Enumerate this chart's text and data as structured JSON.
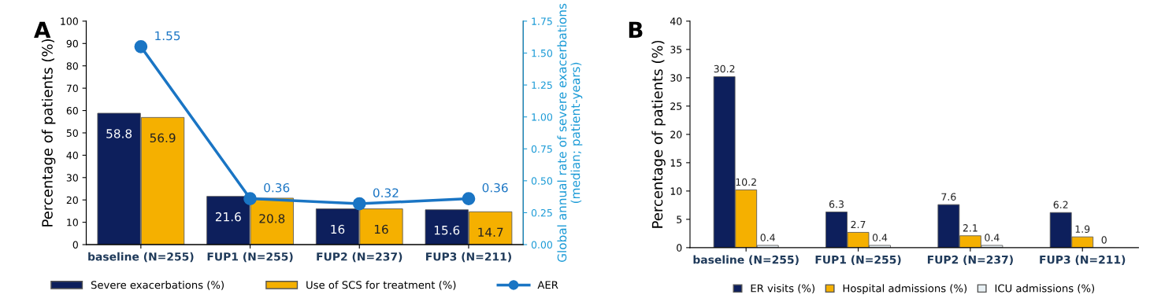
{
  "chart_data": [
    {
      "type": "bar",
      "title": "A",
      "categories": [
        "baseline (N=255)",
        "FUP1 (N=255)",
        "FUP2 (N=237)",
        "FUP3 (N=211)"
      ],
      "ylabel": "Percentage of patients (%)",
      "y2label": "Global annual rate of severe exacerbations\n(median; patient-years)",
      "ylim": [
        0,
        100
      ],
      "yticks": [
        0,
        10,
        20,
        30,
        40,
        50,
        60,
        70,
        80,
        90,
        100
      ],
      "y2lim": [
        0,
        1.75
      ],
      "y2ticks": [
        {
          "value": 0,
          "label": "0.00"
        },
        {
          "value": 0.25,
          "label": "0.25"
        },
        {
          "value": 0.5,
          "label": "0.50"
        },
        {
          "value": 0.75,
          "label": "0.75"
        },
        {
          "value": 1,
          "label": "1.00"
        },
        {
          "value": 1.25,
          "label": "1.25"
        },
        {
          "value": 1.5,
          "label": "1.50"
        },
        {
          "value": 1.75,
          "label": "1.75"
        }
      ],
      "series": [
        {
          "name": "Severe exacerbations (%)",
          "color": "#0d1f5c",
          "values": [
            58.8,
            21.6,
            16,
            15.6
          ]
        },
        {
          "name": "Use of SCS for treatment (%)",
          "color": "#f5b000",
          "values": [
            56.9,
            20.8,
            16,
            14.7
          ]
        },
        {
          "name": "AER",
          "type": "line",
          "axis": "y2",
          "color": "#1a75c4",
          "marker": "circle",
          "values": [
            1.55,
            0.36,
            0.32,
            0.36
          ]
        }
      ],
      "data_labels": true,
      "grid": false,
      "legend": "bottom"
    },
    {
      "type": "bar",
      "title": "B",
      "categories": [
        "baseline (N=255)",
        "FUP1 (N=255)",
        "FUP2 (N=237)",
        "FUP3 (N=211)"
      ],
      "ylabel": "Percentage of patients (%)",
      "ylim": [
        0,
        40
      ],
      "yticks": [
        0,
        5,
        10,
        15,
        20,
        25,
        30,
        35,
        40
      ],
      "series": [
        {
          "name": "ER visits (%)",
          "color": "#0d1f5c",
          "values": [
            30.2,
            6.3,
            7.6,
            6.2
          ]
        },
        {
          "name": "Hospital admissions (%)",
          "color": "#f5b000",
          "values": [
            10.2,
            2.7,
            2.1,
            1.9
          ]
        },
        {
          "name": "ICU admissions (%)",
          "color": "#e8f0f4",
          "values": [
            0.4,
            0.4,
            0.4,
            0
          ]
        }
      ],
      "data_labels": true,
      "grid": false,
      "legend": "bottom"
    }
  ]
}
